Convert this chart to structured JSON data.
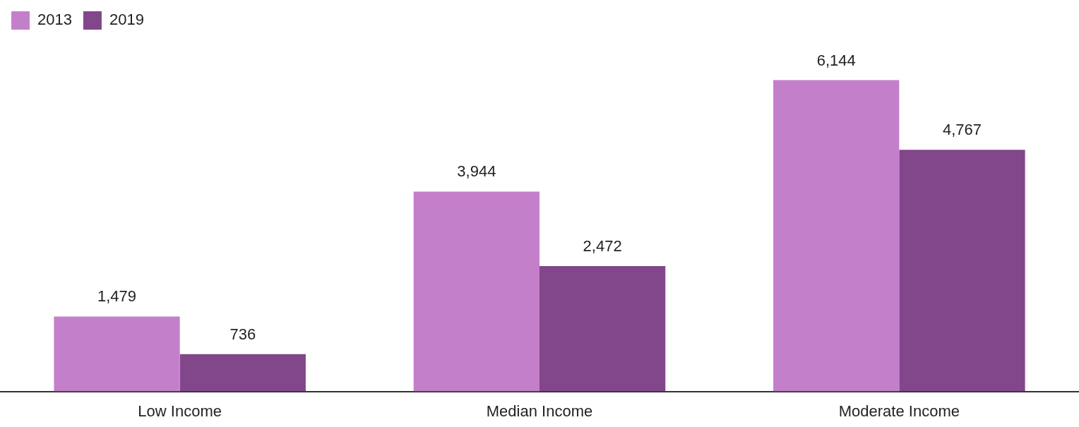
{
  "chart_data": {
    "type": "bar",
    "categories": [
      "Low Income",
      "Median Income",
      "Moderate Income"
    ],
    "series": [
      {
        "name": "2013",
        "color": "#c47fcb",
        "values": [
          1479,
          3944,
          6144
        ],
        "value_labels": [
          "1,479",
          "3,944",
          "6,144"
        ]
      },
      {
        "name": "2019",
        "color": "#82468a",
        "values": [
          736,
          2472,
          4767
        ],
        "value_labels": [
          "736",
          "2,472",
          "4,767"
        ]
      }
    ],
    "legend": "top left"
  }
}
